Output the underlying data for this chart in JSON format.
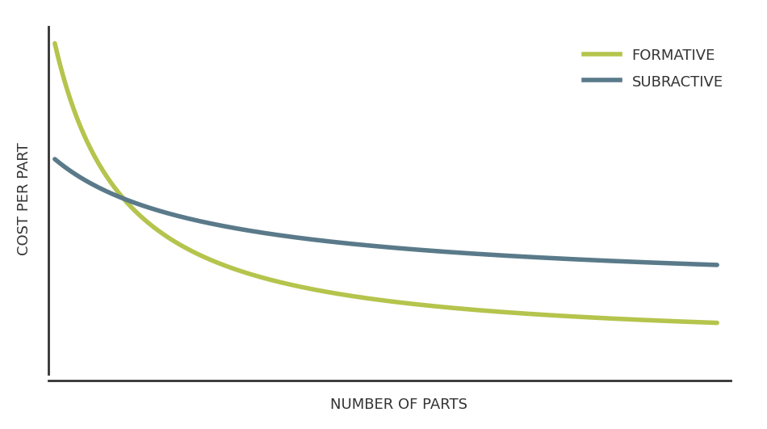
{
  "title": "",
  "xlabel": "NUMBER OF PARTS",
  "ylabel": "COST PER PART",
  "background_color": "#ffffff",
  "grid_color": "#cccccc",
  "axes_color": "#333333",
  "formative_color": "#b5c44c",
  "subtractive_color": "#5a7a8a",
  "formative_label": "FORMATIVE",
  "subtractive_label": "SUBRACTIVE",
  "line_width": 4,
  "xlabel_fontsize": 13,
  "ylabel_fontsize": 13,
  "legend_fontsize": 13
}
